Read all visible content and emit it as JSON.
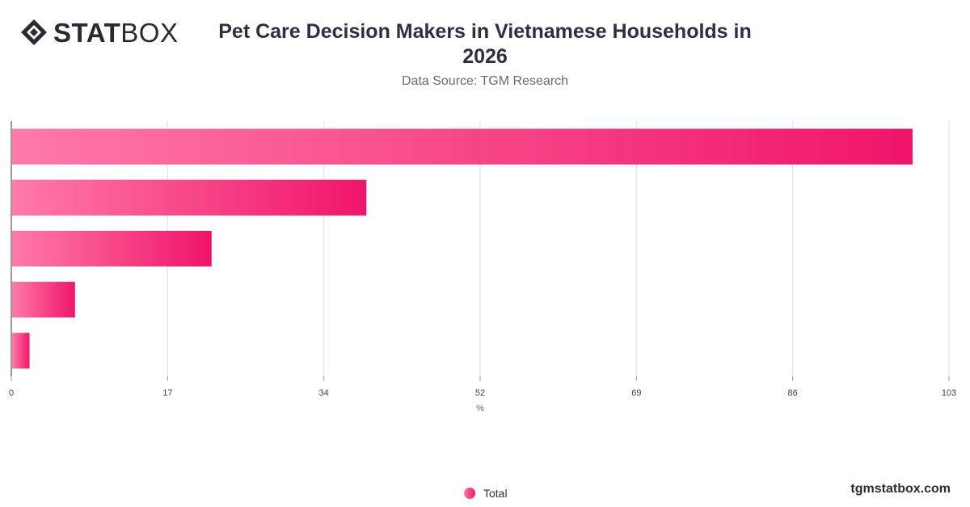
{
  "brand": {
    "logo_bold": "STAT",
    "logo_thin": "BOX",
    "footer": "tgmstatbox.com"
  },
  "header": {
    "title_line1": "Pet Care Decision Makers in Vietnamese Households in",
    "title_line2": "2026",
    "subtitle": "Data Source: TGM Research"
  },
  "colors": {
    "bar_start": "#ff7aa8",
    "bar_end": "#f0156a",
    "grid": "#dedede",
    "axis": "#333333"
  },
  "chart_data": {
    "type": "bar",
    "orientation": "horizontal",
    "categories": [
      "",
      "",
      "",
      "",
      ""
    ],
    "series": [
      {
        "name": "Total",
        "values": [
          99,
          39,
          22,
          7,
          2
        ]
      }
    ],
    "xlabel": "%",
    "ylabel": "",
    "xlim": [
      0,
      103
    ],
    "xticks": [
      "0",
      "17",
      "34",
      "52",
      "69",
      "86",
      "103"
    ],
    "grid": true,
    "legend": "bottom-center"
  },
  "legend": {
    "label": "Total"
  }
}
